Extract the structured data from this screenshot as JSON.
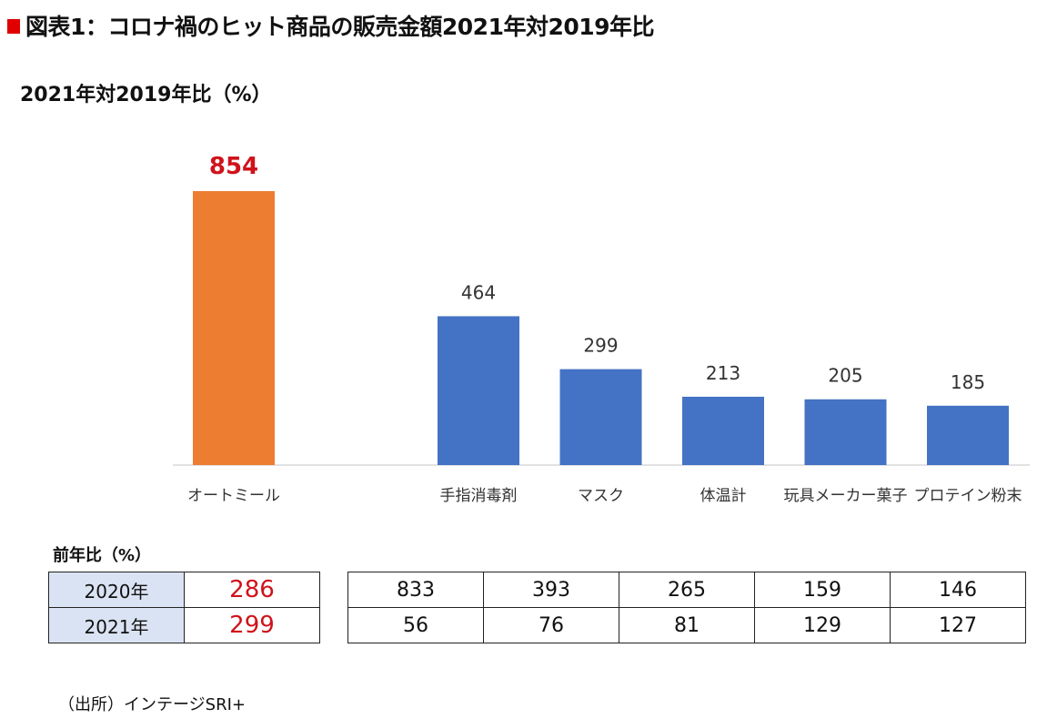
{
  "title": "図表1：コロナ禍のヒット商品の販売金額2021年対2019年比",
  "chart_data": {
    "type": "bar",
    "title": "2021年対2019年比（%）",
    "categories": [
      "オートミール",
      "手指消毒剤",
      "マスク",
      "体温計",
      "玩具メーカー菓子",
      "プロテイン粉末"
    ],
    "values": [
      854,
      464,
      299,
      213,
      205,
      185
    ],
    "ylim": [
      0,
      900
    ],
    "grid": false,
    "colors": [
      "#ed7d31",
      "#4472c4",
      "#4472c4",
      "#4472c4",
      "#4472c4",
      "#4472c4"
    ],
    "highlight_label_color": "#d0121b",
    "label_color": "#333333"
  },
  "table": {
    "label": "前年比（%）",
    "rows": [
      {
        "year": "2020年",
        "values": [
          "286",
          "833",
          "393",
          "265",
          "159",
          "146"
        ]
      },
      {
        "year": "2021年",
        "values": [
          "299",
          "56",
          "76",
          "81",
          "129",
          "127"
        ]
      }
    ]
  },
  "source": "（出所）インテージSRI+"
}
